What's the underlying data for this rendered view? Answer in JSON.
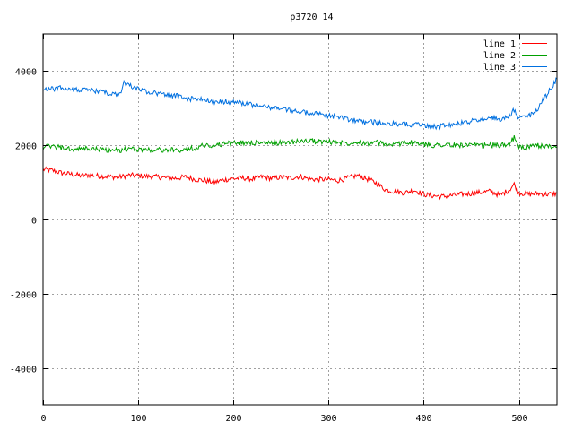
{
  "chart_data": {
    "type": "line",
    "title": "p3720_14",
    "xlabel": "",
    "ylabel": "",
    "xlim": [
      0,
      540
    ],
    "ylim": [
      -5000,
      5000
    ],
    "x_ticks": [
      0,
      100,
      200,
      300,
      400,
      500
    ],
    "y_ticks": [
      -4000,
      -2000,
      0,
      2000,
      4000
    ],
    "x_tick_labels": [
      "0",
      "100",
      "200",
      "300",
      "400",
      "500"
    ],
    "y_tick_labels": [
      "-4000",
      "-2000",
      "0",
      "2000",
      "4000"
    ],
    "grid": true,
    "legend_position": "top-right",
    "series": [
      {
        "name": "line 1",
        "color": "#ff0000",
        "x": [
          0,
          10,
          20,
          30,
          40,
          50,
          60,
          70,
          80,
          90,
          100,
          110,
          120,
          130,
          140,
          150,
          160,
          170,
          180,
          190,
          200,
          210,
          220,
          230,
          240,
          250,
          260,
          270,
          280,
          290,
          300,
          310,
          320,
          330,
          340,
          350,
          360,
          370,
          380,
          390,
          400,
          410,
          420,
          430,
          440,
          450,
          460,
          470,
          480,
          490,
          495,
          500,
          510,
          520,
          530,
          540
        ],
        "values": [
          1350,
          1320,
          1250,
          1220,
          1180,
          1200,
          1170,
          1150,
          1140,
          1190,
          1180,
          1160,
          1150,
          1120,
          1110,
          1150,
          1080,
          1050,
          1000,
          1070,
          1100,
          1120,
          1090,
          1150,
          1110,
          1140,
          1120,
          1160,
          1090,
          1080,
          1080,
          1050,
          1120,
          1180,
          1100,
          980,
          800,
          750,
          720,
          790,
          680,
          640,
          620,
          650,
          680,
          700,
          730,
          760,
          650,
          800,
          950,
          720,
          680,
          700,
          680,
          700
        ]
      },
      {
        "name": "line 2",
        "color": "#00a000",
        "x": [
          0,
          10,
          20,
          30,
          40,
          50,
          60,
          70,
          80,
          90,
          100,
          110,
          120,
          130,
          140,
          150,
          160,
          170,
          180,
          190,
          200,
          210,
          220,
          230,
          240,
          250,
          260,
          270,
          280,
          290,
          300,
          310,
          320,
          330,
          340,
          350,
          360,
          370,
          380,
          390,
          400,
          410,
          420,
          430,
          440,
          450,
          460,
          470,
          480,
          490,
          495,
          500,
          510,
          520,
          530,
          540
        ],
        "values": [
          1950,
          1970,
          1930,
          1880,
          1900,
          1910,
          1890,
          1870,
          1860,
          1900,
          1890,
          1880,
          1870,
          1880,
          1860,
          1890,
          1930,
          2010,
          1980,
          2050,
          2060,
          2070,
          2080,
          2060,
          2050,
          2080,
          2090,
          2110,
          2120,
          2100,
          2090,
          2080,
          2060,
          2100,
          2050,
          2080,
          2020,
          2010,
          2090,
          2060,
          2020,
          2000,
          2030,
          1990,
          2010,
          2000,
          1980,
          2010,
          1990,
          2050,
          2200,
          1950,
          1940,
          1990,
          1970,
          1960
        ]
      },
      {
        "name": "line 3",
        "color": "#0070e0",
        "x": [
          0,
          10,
          20,
          30,
          40,
          50,
          60,
          70,
          80,
          85,
          90,
          100,
          110,
          120,
          130,
          140,
          150,
          160,
          170,
          180,
          190,
          200,
          210,
          220,
          230,
          240,
          250,
          260,
          270,
          280,
          290,
          300,
          310,
          320,
          330,
          340,
          350,
          360,
          370,
          380,
          390,
          400,
          410,
          420,
          430,
          440,
          450,
          460,
          470,
          480,
          490,
          495,
          500,
          510,
          520,
          530,
          540
        ],
        "values": [
          3500,
          3520,
          3540,
          3510,
          3500,
          3480,
          3460,
          3380,
          3350,
          3680,
          3620,
          3520,
          3450,
          3400,
          3350,
          3330,
          3280,
          3220,
          3260,
          3140,
          3180,
          3150,
          3130,
          3080,
          3050,
          3010,
          2980,
          2950,
          2890,
          2870,
          2850,
          2800,
          2760,
          2700,
          2650,
          2620,
          2620,
          2580,
          2580,
          2560,
          2560,
          2540,
          2500,
          2520,
          2550,
          2600,
          2650,
          2700,
          2750,
          2680,
          2800,
          2950,
          2720,
          2780,
          3000,
          3400,
          3800
        ]
      }
    ]
  }
}
